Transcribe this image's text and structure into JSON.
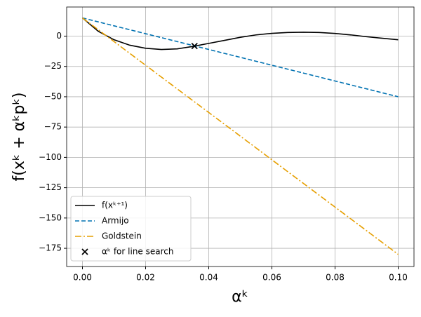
{
  "chart_data": {
    "type": "line",
    "xlabel": "αᵏ",
    "ylabel": "f(xᵏ + αᵏpᵏ)",
    "x": [
      0,
      0.005,
      0.01,
      0.015,
      0.02,
      0.025,
      0.03,
      0.035,
      0.04,
      0.045,
      0.05,
      0.055,
      0.06,
      0.065,
      0.07,
      0.075,
      0.08,
      0.085,
      0.09,
      0.095,
      0.1
    ],
    "series": [
      {
        "name": "f(xᵏ⁺¹)",
        "type": "line",
        "color": "#000000",
        "dash": "solid",
        "values": [
          15,
          4,
          -3,
          -7.5,
          -10,
          -11,
          -10.5,
          -8.5,
          -6,
          -3.5,
          -1,
          1,
          2.3,
          3,
          3.2,
          3,
          2.2,
          1,
          -0.5,
          -1.8,
          -3
        ]
      },
      {
        "name": "Armijo",
        "type": "line",
        "color": "#0072b2",
        "dash": "dashed",
        "values": [
          15,
          11.75,
          8.5,
          5.25,
          2,
          -1.25,
          -4.5,
          -7.75,
          -11,
          -14.25,
          -17.5,
          -20.75,
          -24,
          -27.25,
          -30.5,
          -33.75,
          -37,
          -40.25,
          -43.5,
          -46.75,
          -50
        ]
      },
      {
        "name": "Goldstein",
        "type": "line",
        "color": "#e69f00",
        "dash": "dashdot",
        "values": [
          15,
          5.25,
          -4.5,
          -14.25,
          -24,
          -33.75,
          -43.5,
          -53.25,
          -63,
          -72.75,
          -82.5,
          -92.25,
          -102,
          -111.75,
          -121.5,
          -131.25,
          -141,
          -150.75,
          -160.5,
          -170.25,
          -180
        ]
      },
      {
        "name": "αᵏ for line search",
        "type": "scatter",
        "color": "#000000",
        "marker": "x",
        "x": [
          0.0355
        ],
        "values": [
          -8.2
        ]
      }
    ],
    "xlim": [
      -0.005,
      0.105
    ],
    "ylim": [
      -190,
      24
    ],
    "xticks": [
      {
        "value": 0,
        "label": "0.00"
      },
      {
        "value": 0.02,
        "label": "0.02"
      },
      {
        "value": 0.04,
        "label": "0.04"
      },
      {
        "value": 0.06,
        "label": "0.06"
      },
      {
        "value": 0.08,
        "label": "0.08"
      },
      {
        "value": 0.1,
        "label": "0.10"
      }
    ],
    "yticks": [
      0,
      {
        "value": -25,
        "label": "−25"
      },
      {
        "value": -50,
        "label": "−50"
      },
      {
        "value": -75,
        "label": "−75"
      },
      {
        "value": -100,
        "label": "−100"
      },
      {
        "value": -125,
        "label": "−125"
      },
      {
        "value": -150,
        "label": "−150"
      },
      {
        "value": -175,
        "label": "−175"
      }
    ],
    "grid": true,
    "legend": "lower left"
  }
}
